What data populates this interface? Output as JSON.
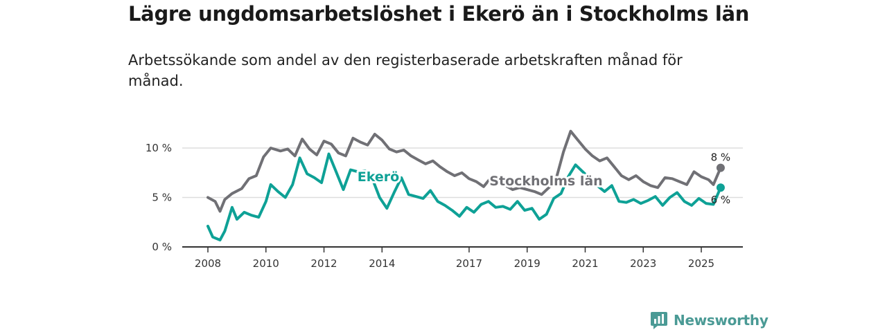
{
  "title": "Lägre ungdomsarbetslöshet i Ekerö än i Stockholms län",
  "subtitle": "Arbetssökande som andel av den registerbaserade arbetskraften månad för månad.",
  "brand": {
    "name": "Newsworthy",
    "icon": "newsworthy-logo-icon"
  },
  "colors": {
    "stockholm": "#707075",
    "ekero": "#0ea196",
    "grid": "#dddddd",
    "axis": "#333333",
    "brand": "#4a9a95"
  },
  "chart_data": {
    "type": "line",
    "x_type": "date",
    "x_ticks": [
      "2008",
      "2010",
      "2012",
      "2014",
      "2017",
      "2019",
      "2021",
      "2023",
      "2025"
    ],
    "y_ticks": [
      "0 %",
      "5 %",
      "10 %"
    ],
    "ylim": [
      0,
      10
    ],
    "grid": true,
    "series": [
      {
        "name": "Stockholms län",
        "end_label": "8 %",
        "points": [
          [
            "2008-01",
            5.0
          ],
          [
            "2008-04",
            4.6
          ],
          [
            "2008-06",
            3.6
          ],
          [
            "2008-08",
            4.8
          ],
          [
            "2008-11",
            5.4
          ],
          [
            "2009-03",
            5.9
          ],
          [
            "2009-06",
            6.9
          ],
          [
            "2009-09",
            7.2
          ],
          [
            "2009-12",
            9.1
          ],
          [
            "2010-03",
            10.0
          ],
          [
            "2010-07",
            9.7
          ],
          [
            "2010-10",
            9.9
          ],
          [
            "2011-01",
            9.2
          ],
          [
            "2011-04",
            10.9
          ],
          [
            "2011-07",
            9.9
          ],
          [
            "2011-10",
            9.3
          ],
          [
            "2012-01",
            10.7
          ],
          [
            "2012-04",
            10.4
          ],
          [
            "2012-07",
            9.5
          ],
          [
            "2012-10",
            9.2
          ],
          [
            "2013-01",
            11.0
          ],
          [
            "2013-04",
            10.6
          ],
          [
            "2013-07",
            10.3
          ],
          [
            "2013-10",
            11.4
          ],
          [
            "2014-01",
            10.8
          ],
          [
            "2014-04",
            9.9
          ],
          [
            "2014-07",
            9.6
          ],
          [
            "2014-10",
            9.8
          ],
          [
            "2015-01",
            9.2
          ],
          [
            "2015-04",
            8.8
          ],
          [
            "2015-07",
            8.4
          ],
          [
            "2015-10",
            8.7
          ],
          [
            "2016-01",
            8.1
          ],
          [
            "2016-04",
            7.6
          ],
          [
            "2016-07",
            7.2
          ],
          [
            "2016-10",
            7.5
          ],
          [
            "2017-01",
            6.9
          ],
          [
            "2017-04",
            6.6
          ],
          [
            "2017-07",
            6.1
          ],
          [
            "2017-10",
            7.0
          ],
          [
            "2018-01",
            6.6
          ],
          [
            "2018-04",
            6.2
          ],
          [
            "2018-07",
            5.8
          ],
          [
            "2018-10",
            6.0
          ],
          [
            "2019-01",
            5.8
          ],
          [
            "2019-04",
            5.6
          ],
          [
            "2019-07",
            5.3
          ],
          [
            "2019-10",
            6.0
          ],
          [
            "2020-01",
            6.9
          ],
          [
            "2020-04",
            9.6
          ],
          [
            "2020-07",
            11.7
          ],
          [
            "2020-10",
            10.8
          ],
          [
            "2021-01",
            9.9
          ],
          [
            "2021-04",
            9.2
          ],
          [
            "2021-07",
            8.7
          ],
          [
            "2021-10",
            9.0
          ],
          [
            "2022-01",
            8.1
          ],
          [
            "2022-04",
            7.2
          ],
          [
            "2022-07",
            6.8
          ],
          [
            "2022-10",
            7.2
          ],
          [
            "2023-01",
            6.6
          ],
          [
            "2023-04",
            6.2
          ],
          [
            "2023-07",
            6.0
          ],
          [
            "2023-10",
            7.0
          ],
          [
            "2024-01",
            6.9
          ],
          [
            "2024-04",
            6.6
          ],
          [
            "2024-07",
            6.3
          ],
          [
            "2024-10",
            7.6
          ],
          [
            "2025-01",
            7.1
          ],
          [
            "2025-04",
            6.8
          ],
          [
            "2025-06",
            6.3
          ],
          [
            "2025-09",
            8.0
          ]
        ]
      },
      {
        "name": "Ekerö",
        "end_label": "6 %",
        "points": [
          [
            "2008-01",
            2.1
          ],
          [
            "2008-03",
            1.0
          ],
          [
            "2008-06",
            0.7
          ],
          [
            "2008-08",
            1.6
          ],
          [
            "2008-11",
            4.0
          ],
          [
            "2009-01",
            2.8
          ],
          [
            "2009-04",
            3.5
          ],
          [
            "2009-07",
            3.2
          ],
          [
            "2009-10",
            3.0
          ],
          [
            "2010-01",
            4.6
          ],
          [
            "2010-03",
            6.3
          ],
          [
            "2010-06",
            5.6
          ],
          [
            "2010-09",
            5.0
          ],
          [
            "2010-12",
            6.3
          ],
          [
            "2011-03",
            9.0
          ],
          [
            "2011-06",
            7.4
          ],
          [
            "2011-09",
            7.0
          ],
          [
            "2011-12",
            6.5
          ],
          [
            "2012-03",
            9.4
          ],
          [
            "2012-06",
            7.6
          ],
          [
            "2012-09",
            5.8
          ],
          [
            "2012-12",
            7.8
          ],
          [
            "2013-03",
            7.6
          ],
          [
            "2013-06",
            7.7
          ],
          [
            "2013-09",
            6.9
          ],
          [
            "2013-12",
            5.0
          ],
          [
            "2014-03",
            3.9
          ],
          [
            "2014-06",
            5.5
          ],
          [
            "2014-09",
            7.0
          ],
          [
            "2014-12",
            5.3
          ],
          [
            "2015-03",
            5.1
          ],
          [
            "2015-06",
            4.9
          ],
          [
            "2015-09",
            5.7
          ],
          [
            "2015-12",
            4.6
          ],
          [
            "2016-03",
            4.2
          ],
          [
            "2016-06",
            3.7
          ],
          [
            "2016-09",
            3.1
          ],
          [
            "2016-12",
            4.0
          ],
          [
            "2017-03",
            3.5
          ],
          [
            "2017-06",
            4.3
          ],
          [
            "2017-09",
            4.6
          ],
          [
            "2017-12",
            4.0
          ],
          [
            "2018-03",
            4.1
          ],
          [
            "2018-06",
            3.8
          ],
          [
            "2018-09",
            4.6
          ],
          [
            "2018-12",
            3.7
          ],
          [
            "2019-03",
            3.9
          ],
          [
            "2019-06",
            2.8
          ],
          [
            "2019-09",
            3.3
          ],
          [
            "2019-12",
            4.9
          ],
          [
            "2020-03",
            5.4
          ],
          [
            "2020-06",
            7.1
          ],
          [
            "2020-09",
            8.3
          ],
          [
            "2020-12",
            7.6
          ],
          [
            "2021-03",
            6.9
          ],
          [
            "2021-06",
            6.2
          ],
          [
            "2021-09",
            5.6
          ],
          [
            "2021-12",
            6.2
          ],
          [
            "2022-03",
            4.6
          ],
          [
            "2022-06",
            4.5
          ],
          [
            "2022-09",
            4.8
          ],
          [
            "2022-12",
            4.4
          ],
          [
            "2023-03",
            4.7
          ],
          [
            "2023-06",
            5.1
          ],
          [
            "2023-09",
            4.2
          ],
          [
            "2023-12",
            5.0
          ],
          [
            "2024-03",
            5.5
          ],
          [
            "2024-06",
            4.6
          ],
          [
            "2024-09",
            4.2
          ],
          [
            "2024-12",
            4.9
          ],
          [
            "2025-03",
            4.4
          ],
          [
            "2025-06",
            4.3
          ],
          [
            "2025-09",
            6.0
          ]
        ]
      }
    ]
  }
}
